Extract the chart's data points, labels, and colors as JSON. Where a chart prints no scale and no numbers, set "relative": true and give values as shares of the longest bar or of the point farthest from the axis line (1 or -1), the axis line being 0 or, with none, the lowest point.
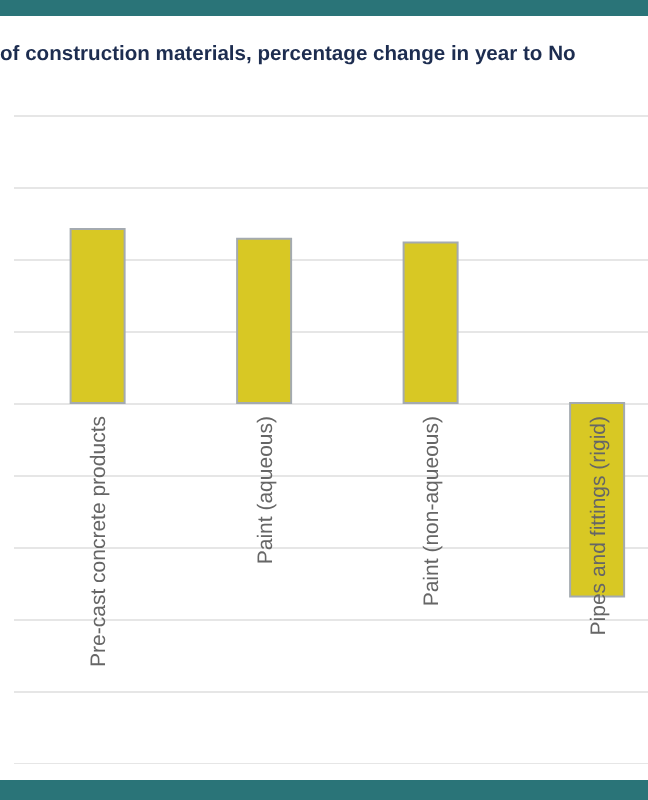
{
  "chart_data": {
    "type": "bar",
    "title": "of construction materials, percentage change in year to No",
    "categories": [
      "Pre-cast concrete products",
      "Paint (aqueous)",
      "Paint (non-aqueous)",
      "Pipes and fittings (rigid)"
    ],
    "values": [
      0.9,
      0.85,
      0.83,
      -1
    ],
    "color": "#d8c824",
    "relative": true,
    "grid": true
  }
}
